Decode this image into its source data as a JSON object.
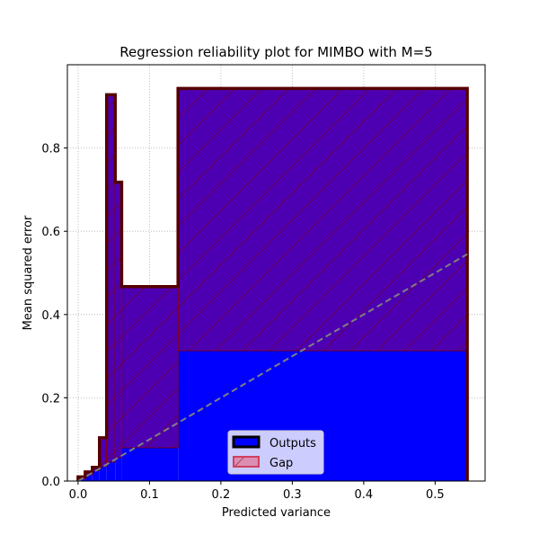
{
  "chart_data": {
    "type": "bar",
    "title": "Regression reliability plot for MIMBO with M=5",
    "xlabel": "Predicted variance",
    "ylabel": "Mean squared error",
    "xlim": [
      -0.015,
      0.57
    ],
    "ylim": [
      0,
      1.0
    ],
    "xticks": [
      0.0,
      0.1,
      0.2,
      0.3,
      0.4,
      0.5
    ],
    "xtick_labels": [
      "0.0",
      "0.1",
      "0.2",
      "0.3",
      "0.4",
      "0.5"
    ],
    "yticks": [
      0.0,
      0.2,
      0.4,
      0.6,
      0.8
    ],
    "ytick_labels": [
      "0.0",
      "0.2",
      "0.4",
      "0.6",
      "0.8"
    ],
    "grid": true,
    "legend_position": "bottom-center",
    "bin_edges": [
      0.0,
      0.01,
      0.02,
      0.03,
      0.04,
      0.052,
      0.061,
      0.14,
      0.545
    ],
    "series": [
      {
        "name": "Outputs",
        "values": [
          0.01,
          0.022,
          0.033,
          0.104,
          0.928,
          0.718,
          0.467,
          0.943
        ],
        "color": "#0000ff",
        "edge_color": "#000000"
      },
      {
        "name": "Gap",
        "values": [
          0.005,
          0.015,
          0.025,
          0.035,
          0.046,
          0.056,
          0.08,
          0.313
        ],
        "color": "#ff0000",
        "edge_color": "#800000"
      }
    ],
    "reference_line": {
      "x": [
        0.0,
        0.545
      ],
      "y": [
        0.0,
        0.545
      ],
      "color": "#808080"
    }
  }
}
